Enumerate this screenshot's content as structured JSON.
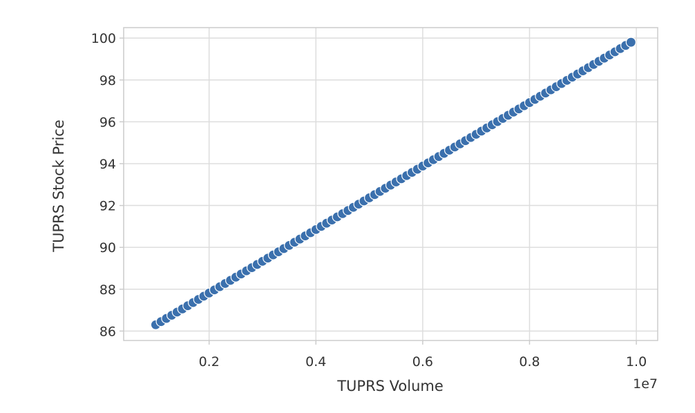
{
  "chart_data": {
    "type": "scatter",
    "xlabel": "TUPRS Volume",
    "ylabel": "TUPRS Stock Price",
    "x_offset_label": "1e7",
    "xlim": [
      0.04,
      1.04
    ],
    "ylim": [
      85.55,
      100.5
    ],
    "x_ticks": [
      0.2,
      0.4,
      0.6,
      0.8,
      1.0
    ],
    "x_tick_labels": [
      "0.2",
      "0.4",
      "0.6",
      "0.8",
      "1.0"
    ],
    "y_ticks": [
      86,
      88,
      90,
      92,
      94,
      96,
      98,
      100
    ],
    "y_tick_labels": [
      "86",
      "88",
      "90",
      "92",
      "94",
      "96",
      "98",
      "100"
    ],
    "x_start": 0.1,
    "x_end": 0.99,
    "y_start": 86.3,
    "y_end": 99.8,
    "point_count": 90,
    "grid": true,
    "marker_color": "#3b70ad",
    "marker_edge_color": "#ffffff"
  }
}
